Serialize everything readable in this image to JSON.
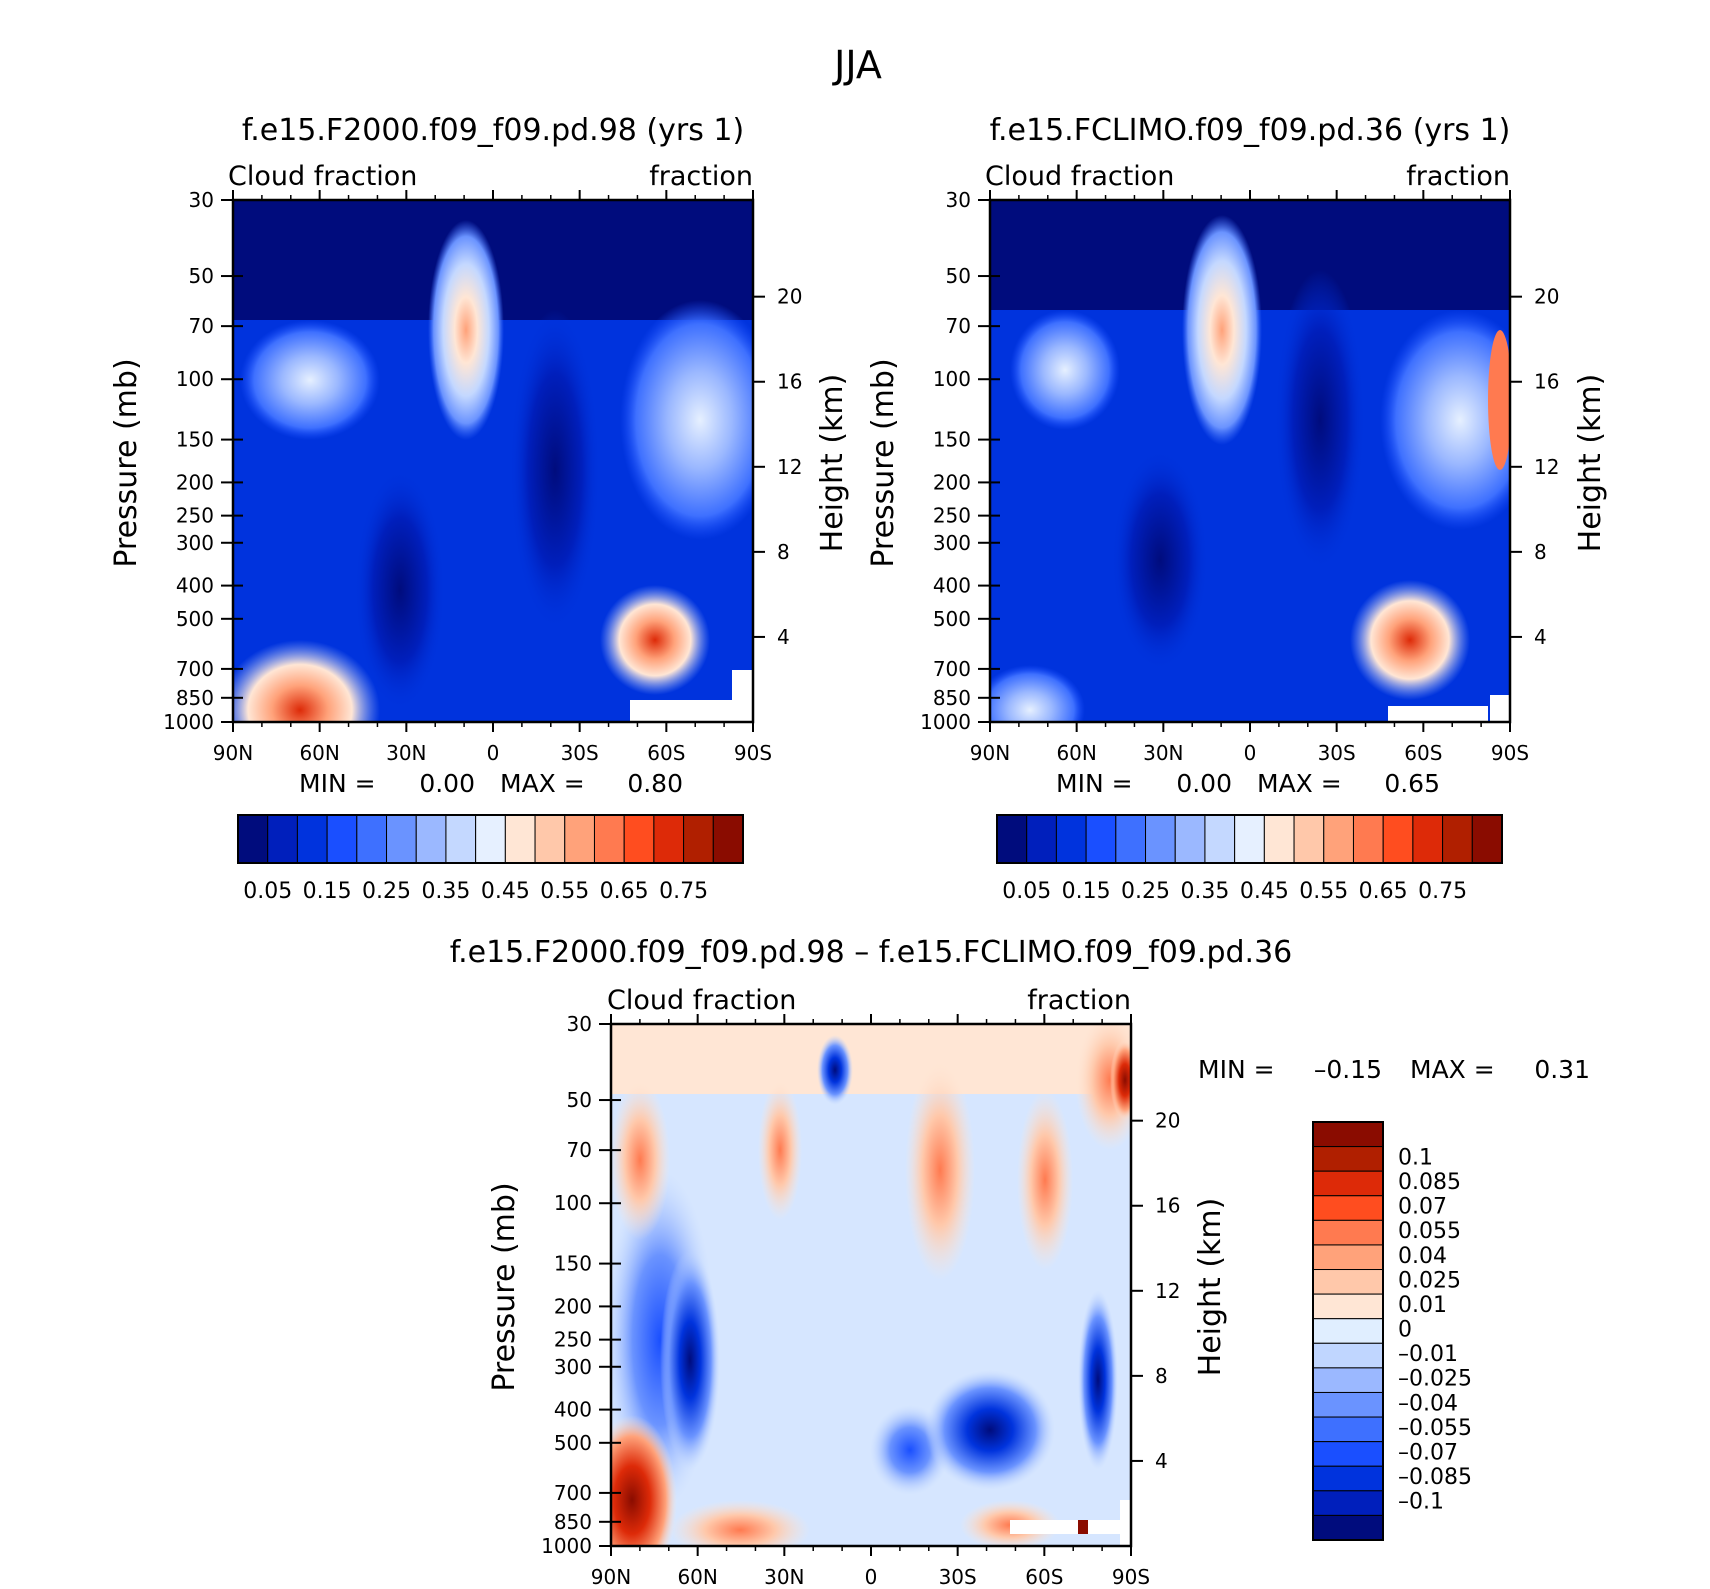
{
  "figure": {
    "title": "JJA"
  },
  "chart_data": [
    {
      "type": "heatmap",
      "id": "p1",
      "title": "f.e15.F2000.f09_f09.pd.98 (yrs 1)",
      "left_label": "Cloud fraction",
      "right_label": "fraction",
      "ylabel": "Pressure (mb)",
      "ylabel2": "Height (km)",
      "xticks": [
        "90N",
        "60N",
        "30N",
        "0",
        "30S",
        "60S",
        "90S"
      ],
      "yticks": [
        "30",
        "50",
        "70",
        "100",
        "150",
        "200",
        "250",
        "300",
        "400",
        "500",
        "700",
        "850",
        "1000"
      ],
      "yticks2": [
        "20",
        "16",
        "12",
        "8",
        "4"
      ],
      "min_label": "MIN =",
      "min_value": "0.00",
      "max_label": "MAX =",
      "max_value": "0.80",
      "colorbar": {
        "orientation": "horizontal",
        "labels": [
          "0.05",
          "0.15",
          "0.25",
          "0.35",
          "0.45",
          "0.55",
          "0.65",
          "0.75"
        ],
        "colors": [
          "#000c7d",
          "#001fbc",
          "#0033dd",
          "#1a4fff",
          "#3e70ff",
          "#6a93ff",
          "#9bb8ff",
          "#c4d8ff",
          "#e6f0ff",
          "#ffe6d5",
          "#ffc8aa",
          "#ffa27a",
          "#ff7a50",
          "#ff4d1f",
          "#dd2a08",
          "#b01f00",
          "#8a0c00"
        ]
      }
    },
    {
      "type": "heatmap",
      "id": "p2",
      "title": "f.e15.FCLIMO.f09_f09.pd.36 (yrs 1)",
      "left_label": "Cloud fraction",
      "right_label": "fraction",
      "ylabel": "Pressure (mb)",
      "ylabel2": "Height (km)",
      "xticks": [
        "90N",
        "60N",
        "30N",
        "0",
        "30S",
        "60S",
        "90S"
      ],
      "yticks": [
        "30",
        "50",
        "70",
        "100",
        "150",
        "200",
        "250",
        "300",
        "400",
        "500",
        "700",
        "850",
        "1000"
      ],
      "yticks2": [
        "20",
        "16",
        "12",
        "8",
        "4"
      ],
      "min_label": "MIN =",
      "min_value": "0.00",
      "max_label": "MAX =",
      "max_value": "0.65",
      "colorbar": {
        "orientation": "horizontal",
        "labels": [
          "0.05",
          "0.15",
          "0.25",
          "0.35",
          "0.45",
          "0.55",
          "0.65",
          "0.75"
        ],
        "colors": [
          "#000c7d",
          "#001fbc",
          "#0033dd",
          "#1a4fff",
          "#3e70ff",
          "#6a93ff",
          "#9bb8ff",
          "#c4d8ff",
          "#e6f0ff",
          "#ffe6d5",
          "#ffc8aa",
          "#ffa27a",
          "#ff7a50",
          "#ff4d1f",
          "#dd2a08",
          "#b01f00",
          "#8a0c00"
        ]
      }
    },
    {
      "type": "heatmap",
      "id": "p3",
      "title": "f.e15.F2000.f09_f09.pd.98 – f.e15.FCLIMO.f09_f09.pd.36",
      "left_label": "Cloud fraction",
      "right_label": "fraction",
      "ylabel": "Pressure (mb)",
      "ylabel2": "Height (km)",
      "xticks": [
        "90N",
        "60N",
        "30N",
        "0",
        "30S",
        "60S",
        "90S"
      ],
      "yticks": [
        "30",
        "50",
        "70",
        "100",
        "150",
        "200",
        "250",
        "300",
        "400",
        "500",
        "700",
        "850",
        "1000"
      ],
      "yticks2": [
        "20",
        "16",
        "12",
        "8",
        "4"
      ],
      "min_label": "MIN =",
      "min_value": "–0.15",
      "max_label": "MAX =",
      "max_value": "0.31",
      "colorbar": {
        "orientation": "vertical",
        "labels": [
          "0.1",
          "0.085",
          "0.07",
          "0.055",
          "0.04",
          "0.025",
          "0.01",
          "0",
          "–0.01",
          "–0.025",
          "–0.04",
          "–0.055",
          "–0.07",
          "–0.085",
          "–0.1"
        ],
        "colors": [
          "#8a0c00",
          "#b01f00",
          "#dd2a08",
          "#ff4d1f",
          "#ff7a50",
          "#ffa27a",
          "#ffc8aa",
          "#ffe6d5",
          "#e0eeff",
          "#c0d6ff",
          "#9bb8ff",
          "#6a93ff",
          "#3e70ff",
          "#1a4fff",
          "#0033dd",
          "#001fbc",
          "#000c7d"
        ]
      }
    }
  ]
}
